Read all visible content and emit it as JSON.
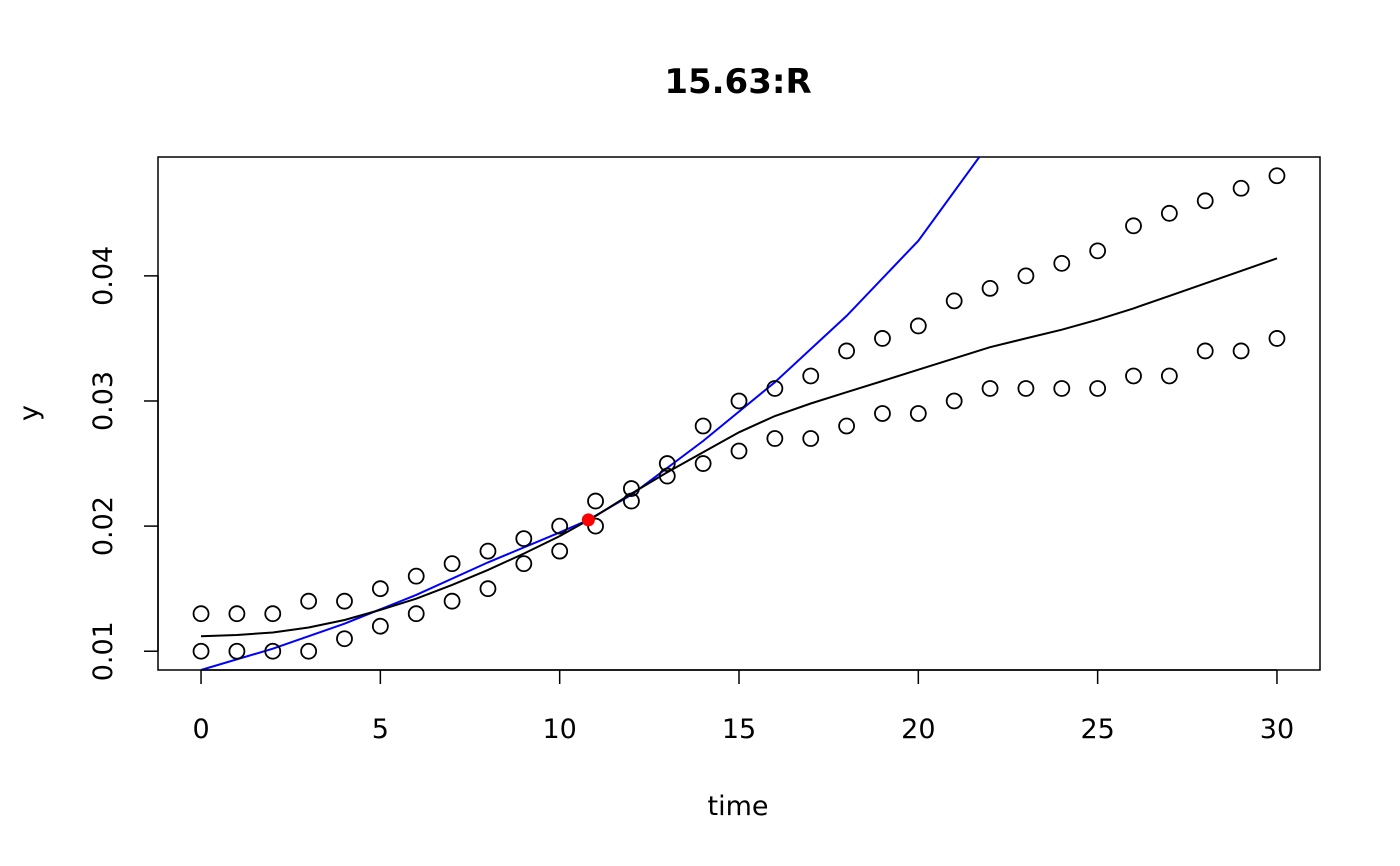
{
  "chart_data": {
    "type": "scatter",
    "title": "15.63:R",
    "xlabel": "time",
    "ylabel": "y",
    "xlim": [
      -1.2,
      31.2
    ],
    "ylim": [
      0.0085,
      0.0495
    ],
    "x_ticks": [
      0,
      5,
      10,
      15,
      20,
      25,
      30
    ],
    "y_ticks": [
      0.01,
      0.02,
      0.03,
      0.04
    ],
    "x_tick_labels": [
      "0",
      "5",
      "10",
      "15",
      "20",
      "25",
      "30"
    ],
    "y_tick_labels": [
      "0.01",
      "0.02",
      "0.03",
      "0.04"
    ],
    "grid": false,
    "legend": "none",
    "points": {
      "x": [
        0,
        1,
        2,
        3,
        4,
        5,
        6,
        7,
        8,
        9,
        10,
        11,
        12,
        13,
        14,
        15,
        16,
        17,
        18,
        19,
        20,
        21,
        22,
        23,
        24,
        25,
        26,
        27,
        28,
        29,
        30,
        0,
        1,
        2,
        3,
        4,
        5,
        6,
        7,
        8,
        9,
        10,
        11,
        12,
        13,
        14,
        15,
        16,
        17,
        18,
        19,
        20,
        21,
        22,
        23,
        24,
        25,
        26,
        27,
        28,
        29,
        30
      ],
      "y": [
        0.013,
        0.013,
        0.013,
        0.014,
        0.014,
        0.015,
        0.016,
        0.017,
        0.018,
        0.019,
        0.02,
        0.022,
        0.023,
        0.025,
        0.028,
        0.03,
        0.031,
        0.032,
        0.034,
        0.035,
        0.036,
        0.038,
        0.039,
        0.04,
        0.041,
        0.042,
        0.044,
        0.045,
        0.046,
        0.047,
        0.048,
        0.01,
        0.01,
        0.01,
        0.01,
        0.011,
        0.012,
        0.013,
        0.014,
        0.015,
        0.017,
        0.018,
        0.02,
        0.022,
        0.024,
        0.025,
        0.026,
        0.027,
        0.027,
        0.028,
        0.029,
        0.029,
        0.03,
        0.031,
        0.031,
        0.031,
        0.031,
        0.032,
        0.032,
        0.034,
        0.034,
        0.035
      ],
      "color": "#000000"
    },
    "smooth_line": {
      "x": [
        0,
        1,
        2,
        3,
        4,
        5,
        6,
        7,
        8,
        9,
        10,
        11,
        12,
        13,
        14,
        15,
        16,
        17,
        18,
        19,
        20,
        21,
        22,
        23,
        24,
        25,
        26,
        27,
        28,
        29,
        30
      ],
      "y": [
        0.0112,
        0.0113,
        0.0115,
        0.0119,
        0.0125,
        0.0133,
        0.0142,
        0.0153,
        0.0165,
        0.0178,
        0.0192,
        0.0208,
        0.0226,
        0.0243,
        0.0259,
        0.0275,
        0.0288,
        0.0298,
        0.0307,
        0.0316,
        0.0325,
        0.0334,
        0.0343,
        0.035,
        0.0357,
        0.0365,
        0.0374,
        0.0384,
        0.0394,
        0.0404,
        0.0414
      ],
      "color": "#000000"
    },
    "fit_curve": {
      "x": [
        0,
        2,
        4,
        6,
        8,
        10,
        10.8,
        12,
        14,
        16,
        18,
        20,
        21.7
      ],
      "y": [
        0.0085,
        0.0102,
        0.0122,
        0.0145,
        0.0171,
        0.0195,
        0.0205,
        0.0225,
        0.0268,
        0.0315,
        0.0368,
        0.0428,
        0.0495
      ],
      "color": "#0000ff"
    },
    "highlight_point": {
      "x": 10.8,
      "y": 0.0205,
      "color": "#ff0000"
    }
  }
}
